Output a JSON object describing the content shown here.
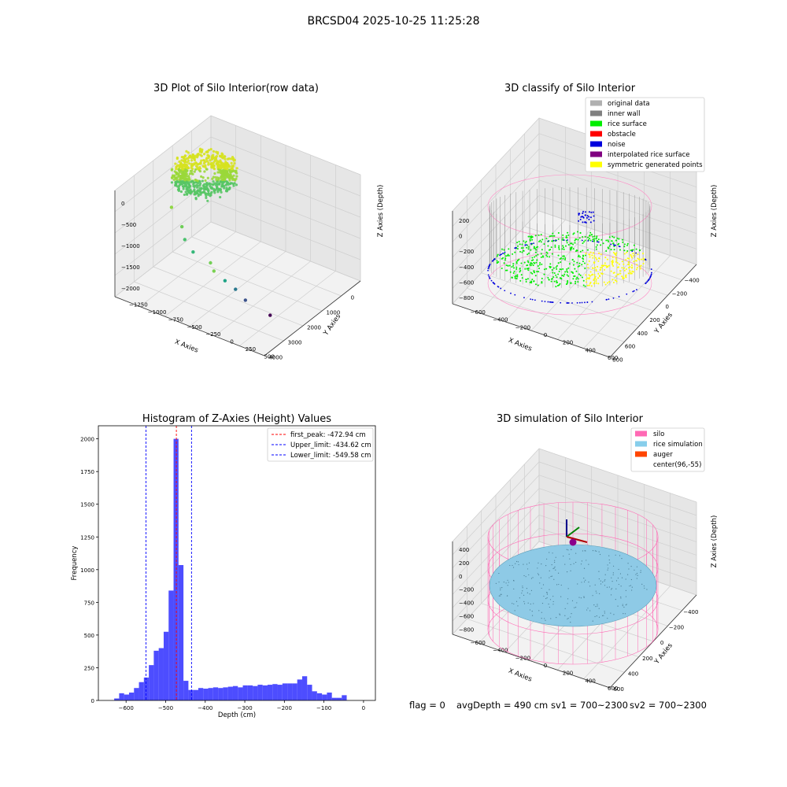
{
  "figure": {
    "suptitle": "BRCSD04 2025-10-25 11:25:28",
    "status": {
      "flag": "flag = 0",
      "avg_depth": "avgDepth = 490 cm",
      "sv1": "sv1 = 700~2300",
      "sv2": "sv2 = 700~2300"
    }
  },
  "chart_data": [
    {
      "type": "scatter",
      "projection": "3d",
      "title": "3D Plot of Silo Interior(row data)",
      "xlabel": "X Axies",
      "ylabel": "Y Axies",
      "zlabel": "Z Axies (Depth)",
      "x_ticks": [
        "0",
        "1000",
        "2000",
        "3000",
        "4000"
      ],
      "y_ticks": [
        "500",
        "250",
        "0",
        "−250",
        "−500",
        "−750",
        "−1000",
        "−1250"
      ],
      "z_ticks": [
        "0",
        "−500",
        "−1000",
        "−1500",
        "−2000"
      ],
      "xlim": [
        -300,
        4100
      ],
      "ylim": [
        -1300,
        700
      ],
      "zlim": [
        -2400,
        100
      ],
      "colormap": "viridis",
      "outlier_points": [
        {
          "x": 200,
          "y": 500,
          "z": -500
        },
        {
          "x": 600,
          "y": 450,
          "z": -800
        },
        {
          "x": 700,
          "y": 400,
          "z": -1000
        },
        {
          "x": 1000,
          "y": 300,
          "z": -1200
        },
        {
          "x": 1600,
          "y": 0,
          "z": -1400
        },
        {
          "x": 1800,
          "y": 200,
          "z": -1500
        },
        {
          "x": 2100,
          "y": -250,
          "z": -1700
        },
        {
          "x": 2600,
          "y": 0,
          "z": -1800
        },
        {
          "x": 2900,
          "y": -300,
          "z": -2000
        },
        {
          "x": 3700,
          "y": -900,
          "z": -2300
        }
      ],
      "grid": true
    },
    {
      "type": "scatter",
      "projection": "3d",
      "title": "3D classify of Silo Interior",
      "xlabel": "X Axies",
      "ylabel": "Y Axies",
      "zlabel": "Z Axies (Depth)",
      "x_ticks": [
        "−400",
        "−200",
        "0",
        "200",
        "400",
        "600",
        "800"
      ],
      "y_ticks": [
        "600",
        "400",
        "200",
        "0",
        "−200",
        "−400",
        "−600"
      ],
      "z_ticks": [
        "200",
        "0",
        "−200",
        "−400",
        "−600",
        "−800"
      ],
      "legend": [
        {
          "label": "original data",
          "color": "#b0b0b0"
        },
        {
          "label": "inner wall",
          "color": "#808080"
        },
        {
          "label": "rice surface",
          "color": "#00ee00"
        },
        {
          "label": "obstacle",
          "color": "#ff0000"
        },
        {
          "label": "noise",
          "color": "#0000dd"
        },
        {
          "label": "interpolated rice surface",
          "color": "#800080"
        },
        {
          "label": "symmetric generated points",
          "color": "#ffff00"
        }
      ],
      "legend_position": "top-right",
      "grid": true
    },
    {
      "type": "bar",
      "title": "Histogram of Z-Axies (Height) Values",
      "xlabel": "Depth (cm)",
      "ylabel": "Frequency",
      "xlim": [
        -670,
        30
      ],
      "ylim": [
        0,
        2100
      ],
      "x_ticks": [
        -600,
        -500,
        -400,
        -300,
        -200,
        -100,
        0
      ],
      "y_ticks": [
        0,
        250,
        500,
        750,
        1000,
        1250,
        1500,
        1750,
        2000
      ],
      "bin_start": -630,
      "bin_width": 12.5,
      "bar_color": "#3a3aff",
      "values": [
        15,
        55,
        45,
        60,
        95,
        140,
        175,
        270,
        380,
        400,
        525,
        840,
        2000,
        1035,
        150,
        80,
        80,
        95,
        90,
        95,
        100,
        95,
        100,
        105,
        110,
        100,
        115,
        115,
        110,
        120,
        115,
        120,
        125,
        120,
        130,
        130,
        130,
        160,
        185,
        120,
        70,
        55,
        45,
        60,
        20,
        20,
        40
      ],
      "vlines": [
        {
          "label": "first_peak: -472.94 cm",
          "x": -472.94,
          "color": "#ff0000"
        },
        {
          "label": "Upper_limit: -434.62 cm",
          "x": -434.62,
          "color": "#0000ff"
        },
        {
          "label": "Lower_limit: -549.58 cm",
          "x": -549.58,
          "color": "#0000ff"
        }
      ],
      "legend_position": "top-right"
    },
    {
      "type": "scatter",
      "projection": "3d",
      "title": "3D simulation of Silo Interior",
      "xlabel": "X Axies",
      "ylabel": "Y Axies",
      "zlabel": "Z Axies (Depth)",
      "x_ticks": [
        "−400",
        "−200",
        "0",
        "200",
        "400",
        "600"
      ],
      "y_ticks": [
        "600",
        "400",
        "200",
        "0",
        "−200",
        "−400",
        "−600"
      ],
      "z_ticks": [
        "400",
        "200",
        "0",
        "−200",
        "−400",
        "−600",
        "−800"
      ],
      "legend": [
        {
          "label": "silo",
          "color": "#ff69b4"
        },
        {
          "label": "rice simulation",
          "color": "#87ceeb"
        },
        {
          "label": "auger",
          "color": "#ff4500"
        },
        {
          "label": "center(96,-55)",
          "color": null
        }
      ],
      "legend_position": "top-right",
      "grid": true
    }
  ]
}
